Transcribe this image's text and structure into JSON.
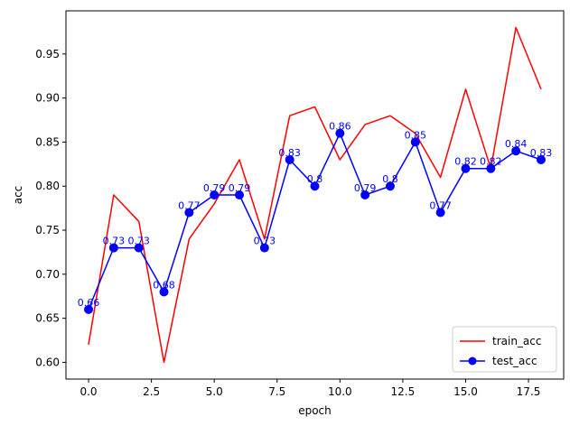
{
  "chart_data": {
    "type": "line",
    "title": "",
    "xlabel": "epoch",
    "ylabel": "acc",
    "xlim": [
      -0.9,
      18.9
    ],
    "ylim": [
      0.581,
      0.999
    ],
    "xticks": [
      0,
      2.5,
      5,
      7.5,
      10,
      12.5,
      15,
      17.5
    ],
    "xtick_labels": [
      "0.0",
      "2.5",
      "5.0",
      "7.5",
      "10.0",
      "12.5",
      "15.0",
      "17.5"
    ],
    "yticks": [
      0.6,
      0.65,
      0.7,
      0.75,
      0.8,
      0.85,
      0.9,
      0.95
    ],
    "ytick_labels": [
      "0.60",
      "0.65",
      "0.70",
      "0.75",
      "0.80",
      "0.85",
      "0.90",
      "0.95"
    ],
    "grid": false,
    "legend_position": "bottom-right",
    "x": [
      0,
      1,
      2,
      3,
      4,
      5,
      6,
      7,
      8,
      9,
      10,
      11,
      12,
      13,
      14,
      15,
      16,
      17,
      18
    ],
    "series": [
      {
        "name": "train_acc",
        "color": "#ff0000",
        "marker": "none",
        "values": [
          0.62,
          0.79,
          0.76,
          0.6,
          0.74,
          0.78,
          0.83,
          0.74,
          0.88,
          0.89,
          0.83,
          0.87,
          0.88,
          0.86,
          0.81,
          0.91,
          0.82,
          0.98,
          0.91
        ]
      },
      {
        "name": "test_acc",
        "color": "#0000ff",
        "marker": "circle",
        "values": [
          0.66,
          0.73,
          0.73,
          0.68,
          0.77,
          0.79,
          0.79,
          0.73,
          0.83,
          0.8,
          0.86,
          0.79,
          0.8,
          0.85,
          0.77,
          0.82,
          0.82,
          0.84,
          0.83
        ],
        "labels": [
          "0.66",
          "0.73",
          "0.73",
          "0.68",
          "0.77",
          "0.79",
          "0.79",
          "0.73",
          "0.83",
          "0.8",
          "0.86",
          "0.79",
          "0.8",
          "0.85",
          "0.77",
          "0.82",
          "0.82",
          "0.84",
          "0.83"
        ]
      }
    ]
  }
}
